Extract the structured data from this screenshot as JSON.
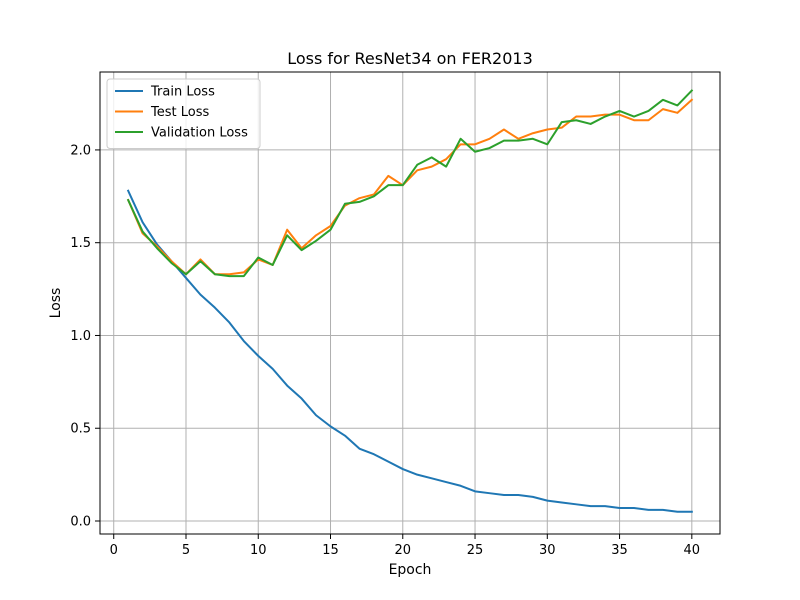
{
  "chart_data": {
    "type": "line",
    "title": "Loss for ResNet34 on FER2013",
    "xlabel": "Epoch",
    "ylabel": "Loss",
    "xlim": [
      -0.95,
      41.95
    ],
    "ylim": [
      -0.07,
      2.42
    ],
    "xticks": [
      0,
      5,
      10,
      15,
      20,
      25,
      30,
      35,
      40
    ],
    "yticks": [
      0.0,
      0.5,
      1.0,
      1.5,
      2.0
    ],
    "xtick_labels": [
      "0",
      "5",
      "10",
      "15",
      "20",
      "25",
      "30",
      "35",
      "40"
    ],
    "ytick_labels": [
      "0.0",
      "0.5",
      "1.0",
      "1.5",
      "2.0"
    ],
    "grid": true,
    "legend_position": "top-left",
    "x": [
      1,
      2,
      3,
      4,
      5,
      6,
      7,
      8,
      9,
      10,
      11,
      12,
      13,
      14,
      15,
      16,
      17,
      18,
      19,
      20,
      21,
      22,
      23,
      24,
      25,
      26,
      27,
      28,
      29,
      30,
      31,
      32,
      33,
      34,
      35,
      36,
      37,
      38,
      39,
      40
    ],
    "series": [
      {
        "name": "Train Loss",
        "color": "#1f77b4",
        "values": [
          1.78,
          1.61,
          1.49,
          1.4,
          1.31,
          1.22,
          1.15,
          1.07,
          0.97,
          0.89,
          0.82,
          0.73,
          0.66,
          0.57,
          0.51,
          0.46,
          0.39,
          0.36,
          0.32,
          0.28,
          0.25,
          0.23,
          0.21,
          0.19,
          0.16,
          0.15,
          0.14,
          0.14,
          0.13,
          0.11,
          0.1,
          0.09,
          0.08,
          0.08,
          0.07,
          0.07,
          0.06,
          0.06,
          0.05,
          0.05
        ]
      },
      {
        "name": "Test Loss",
        "color": "#ff7f0e",
        "values": [
          1.73,
          1.55,
          1.48,
          1.4,
          1.33,
          1.41,
          1.33,
          1.33,
          1.34,
          1.41,
          1.38,
          1.57,
          1.47,
          1.54,
          1.59,
          1.7,
          1.74,
          1.76,
          1.86,
          1.81,
          1.89,
          1.91,
          1.95,
          2.03,
          2.03,
          2.06,
          2.11,
          2.06,
          2.09,
          2.11,
          2.12,
          2.18,
          2.18,
          2.19,
          2.19,
          2.16,
          2.16,
          2.22,
          2.2,
          2.27
        ]
      },
      {
        "name": "Validation Loss",
        "color": "#2ca02c",
        "values": [
          1.73,
          1.56,
          1.47,
          1.39,
          1.33,
          1.4,
          1.33,
          1.32,
          1.32,
          1.42,
          1.38,
          1.54,
          1.46,
          1.51,
          1.57,
          1.71,
          1.72,
          1.75,
          1.81,
          1.81,
          1.92,
          1.96,
          1.91,
          2.06,
          1.99,
          2.01,
          2.05,
          2.05,
          2.06,
          2.03,
          2.15,
          2.16,
          2.14,
          2.18,
          2.21,
          2.18,
          2.21,
          2.27,
          2.24,
          2.32
        ]
      }
    ]
  }
}
